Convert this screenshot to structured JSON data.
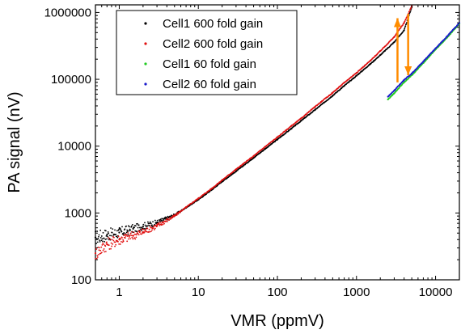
{
  "chart_data": {
    "type": "scatter",
    "xlabel": "VMR (ppmV)",
    "ylabel": "PA signal (nV)",
    "x_scale": "log",
    "y_scale": "log",
    "xlim": [
      0.5,
      20000
    ],
    "ylim": [
      100,
      1300000
    ],
    "x_ticks": [
      {
        "value": 1,
        "label": "1"
      },
      {
        "value": 10,
        "label": "10"
      },
      {
        "value": 100,
        "label": "100"
      },
      {
        "value": 1000,
        "label": "1000"
      },
      {
        "value": 10000,
        "label": "10000"
      }
    ],
    "y_ticks": [
      {
        "value": 100,
        "label": "100"
      },
      {
        "value": 1000,
        "label": "1000"
      },
      {
        "value": 10000,
        "label": "10000"
      },
      {
        "value": 100000,
        "label": "100000"
      },
      {
        "value": 1000000,
        "label": "1000000"
      }
    ],
    "legend_position": "top-left",
    "series": [
      {
        "name": "Cell1 600 fold gain",
        "color": "#000000",
        "points": [
          [
            0.5,
            430
          ],
          [
            0.7,
            470
          ],
          [
            1,
            510
          ],
          [
            1.5,
            580
          ],
          [
            2,
            630
          ],
          [
            3,
            720
          ],
          [
            5,
            930
          ],
          [
            7,
            1200
          ],
          [
            10,
            1580
          ],
          [
            15,
            2250
          ],
          [
            20,
            2950
          ],
          [
            30,
            4200
          ],
          [
            50,
            6700
          ],
          [
            70,
            9100
          ],
          [
            100,
            12600
          ],
          [
            150,
            18300
          ],
          [
            200,
            24000
          ],
          [
            300,
            35000
          ],
          [
            500,
            57000
          ],
          [
            700,
            80000
          ],
          [
            1000,
            113000
          ],
          [
            1500,
            170000
          ],
          [
            2000,
            230000
          ],
          [
            3000,
            360000
          ],
          [
            4000,
            540000
          ],
          [
            5000,
            1200000
          ]
        ]
      },
      {
        "name": "Cell2 600 fold gain",
        "color": "#e01010",
        "points": [
          [
            0.5,
            250
          ],
          [
            0.7,
            340
          ],
          [
            1,
            400
          ],
          [
            1.5,
            460
          ],
          [
            2,
            520
          ],
          [
            3,
            640
          ],
          [
            5,
            900
          ],
          [
            7,
            1220
          ],
          [
            10,
            1650
          ],
          [
            15,
            2350
          ],
          [
            20,
            3100
          ],
          [
            30,
            4500
          ],
          [
            50,
            7100
          ],
          [
            70,
            9800
          ],
          [
            100,
            13600
          ],
          [
            150,
            20000
          ],
          [
            200,
            26000
          ],
          [
            300,
            39000
          ],
          [
            500,
            63000
          ],
          [
            700,
            89000
          ],
          [
            1000,
            125000
          ],
          [
            1500,
            190000
          ],
          [
            2000,
            265000
          ],
          [
            3000,
            430000
          ],
          [
            4000,
            700000
          ],
          [
            5000,
            1250000
          ]
        ]
      },
      {
        "name": "Cell1 60 fold gain",
        "color": "#22cc22",
        "points": [
          [
            2500,
            50000
          ],
          [
            3000,
            62000
          ],
          [
            4000,
            90000
          ],
          [
            5000,
            115000
          ],
          [
            7000,
            175000
          ],
          [
            10000,
            280000
          ],
          [
            14000,
            420000
          ],
          [
            20000,
            680000
          ]
        ]
      },
      {
        "name": "Cell2 60 fold gain",
        "color": "#1a1acc",
        "points": [
          [
            2500,
            55000
          ],
          [
            3000,
            68000
          ],
          [
            4000,
            98000
          ],
          [
            5000,
            122000
          ],
          [
            7000,
            185000
          ],
          [
            10000,
            290000
          ],
          [
            14000,
            440000
          ],
          [
            20000,
            700000
          ]
        ]
      }
    ],
    "annotations": [
      {
        "type": "arrow",
        "from": [
          3300,
          90000
        ],
        "to": [
          3300,
          820000
        ],
        "color": "#ff8c00"
      },
      {
        "type": "arrow",
        "from": [
          4500,
          950000
        ],
        "to": [
          4500,
          115000
        ],
        "color": "#ff8c00"
      }
    ]
  }
}
